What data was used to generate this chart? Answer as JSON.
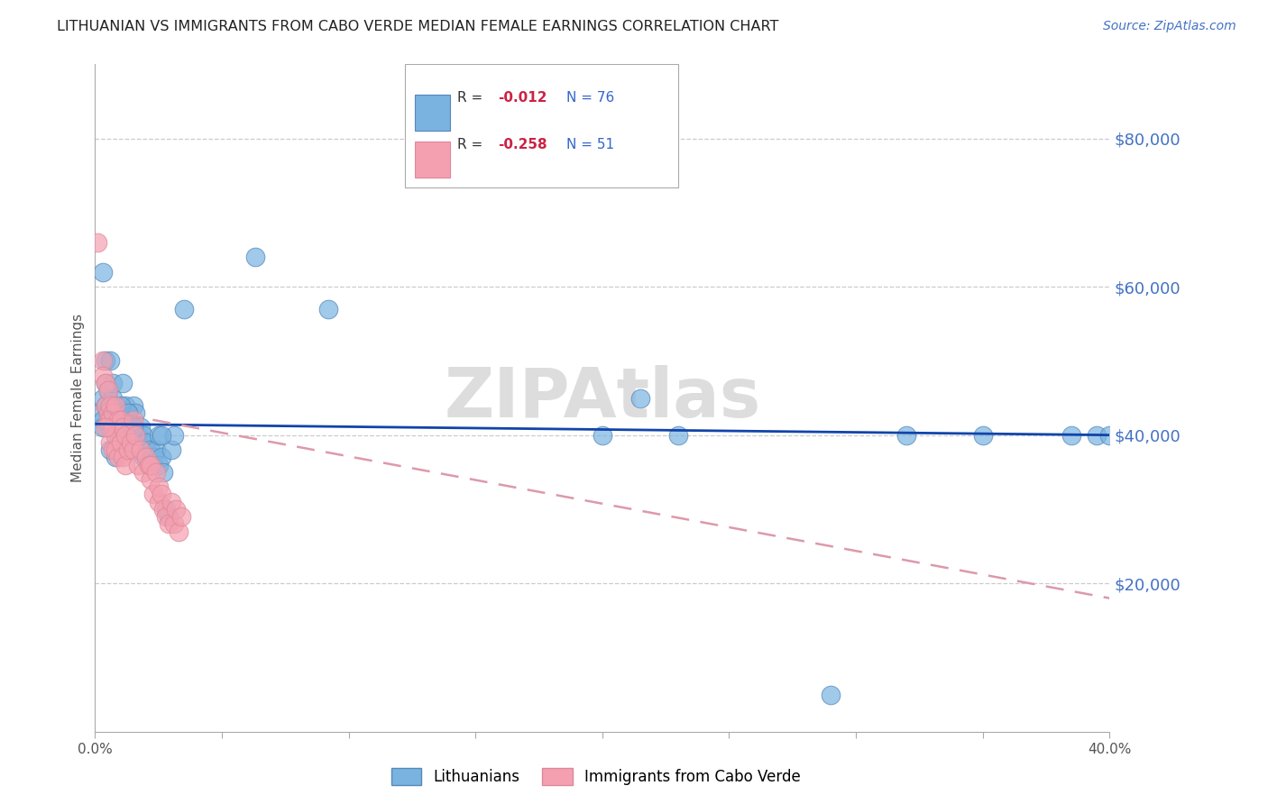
{
  "title": "LITHUANIAN VS IMMIGRANTS FROM CABO VERDE MEDIAN FEMALE EARNINGS CORRELATION CHART",
  "source": "Source: ZipAtlas.com",
  "ylabel": "Median Female Earnings",
  "legend_r_n": [
    {
      "R": "-0.012",
      "N": "76",
      "color_patch": "#7ab3e0",
      "R_color": "#cc2244",
      "N_color": "#3366cc"
    },
    {
      "R": "-0.258",
      "N": "51",
      "color_patch": "#f4a0b0",
      "R_color": "#cc2244",
      "N_color": "#3366cc"
    }
  ],
  "blue_scatter": [
    [
      0.002,
      43000
    ],
    [
      0.003,
      45000
    ],
    [
      0.003,
      42000
    ],
    [
      0.004,
      44000
    ],
    [
      0.004,
      50000
    ],
    [
      0.004,
      47000
    ],
    [
      0.005,
      43000
    ],
    [
      0.005,
      41000
    ],
    [
      0.005,
      46000
    ],
    [
      0.006,
      50000
    ],
    [
      0.006,
      42000
    ],
    [
      0.006,
      38000
    ],
    [
      0.007,
      44000
    ],
    [
      0.007,
      45000
    ],
    [
      0.007,
      47000
    ],
    [
      0.008,
      44000
    ],
    [
      0.008,
      41000
    ],
    [
      0.008,
      37000
    ],
    [
      0.009,
      43000
    ],
    [
      0.009,
      40000
    ],
    [
      0.009,
      43000
    ],
    [
      0.01,
      43000
    ],
    [
      0.01,
      39000
    ],
    [
      0.011,
      47000
    ],
    [
      0.011,
      43000
    ],
    [
      0.011,
      41000
    ],
    [
      0.012,
      44000
    ],
    [
      0.012,
      40000
    ],
    [
      0.012,
      42000
    ],
    [
      0.013,
      39000
    ],
    [
      0.013,
      43000
    ],
    [
      0.014,
      38000
    ],
    [
      0.014,
      41000
    ],
    [
      0.015,
      44000
    ],
    [
      0.015,
      39000
    ],
    [
      0.016,
      43000
    ],
    [
      0.016,
      38000
    ],
    [
      0.017,
      40000
    ],
    [
      0.018,
      41000
    ],
    [
      0.018,
      38000
    ],
    [
      0.019,
      37000
    ],
    [
      0.019,
      40000
    ],
    [
      0.02,
      39000
    ],
    [
      0.02,
      37000
    ],
    [
      0.021,
      36000
    ],
    [
      0.022,
      38000
    ],
    [
      0.022,
      36000
    ],
    [
      0.023,
      37000
    ],
    [
      0.024,
      38000
    ],
    [
      0.025,
      40000
    ],
    [
      0.025,
      36000
    ],
    [
      0.026,
      37000
    ],
    [
      0.027,
      35000
    ],
    [
      0.028,
      30000
    ],
    [
      0.029,
      29000
    ],
    [
      0.03,
      38000
    ],
    [
      0.031,
      40000
    ],
    [
      0.035,
      57000
    ],
    [
      0.063,
      64000
    ],
    [
      0.003,
      62000
    ],
    [
      0.092,
      57000
    ],
    [
      0.2,
      40000
    ],
    [
      0.215,
      45000
    ],
    [
      0.23,
      40000
    ],
    [
      0.29,
      5000
    ],
    [
      0.32,
      40000
    ],
    [
      0.35,
      40000
    ],
    [
      0.385,
      40000
    ],
    [
      0.395,
      40000
    ],
    [
      0.4,
      40000
    ],
    [
      0.003,
      41000
    ],
    [
      0.007,
      42000
    ],
    [
      0.01,
      44000
    ],
    [
      0.013,
      43000
    ],
    [
      0.015,
      41000
    ],
    [
      0.026,
      40000
    ]
  ],
  "pink_scatter": [
    [
      0.001,
      66000
    ],
    [
      0.003,
      50000
    ],
    [
      0.003,
      48000
    ],
    [
      0.004,
      47000
    ],
    [
      0.004,
      44000
    ],
    [
      0.005,
      43000
    ],
    [
      0.005,
      46000
    ],
    [
      0.005,
      42000
    ],
    [
      0.006,
      42000
    ],
    [
      0.006,
      39000
    ],
    [
      0.006,
      44000
    ],
    [
      0.007,
      43000
    ],
    [
      0.007,
      41000
    ],
    [
      0.007,
      38000
    ],
    [
      0.008,
      44000
    ],
    [
      0.008,
      40000
    ],
    [
      0.008,
      38000
    ],
    [
      0.009,
      42000
    ],
    [
      0.009,
      37000
    ],
    [
      0.01,
      42000
    ],
    [
      0.01,
      39000
    ],
    [
      0.011,
      41000
    ],
    [
      0.011,
      37000
    ],
    [
      0.012,
      40000
    ],
    [
      0.012,
      36000
    ],
    [
      0.013,
      38000
    ],
    [
      0.014,
      39000
    ],
    [
      0.015,
      42000
    ],
    [
      0.015,
      38000
    ],
    [
      0.016,
      40000
    ],
    [
      0.017,
      36000
    ],
    [
      0.018,
      38000
    ],
    [
      0.019,
      35000
    ],
    [
      0.02,
      37000
    ],
    [
      0.021,
      36000
    ],
    [
      0.022,
      34000
    ],
    [
      0.022,
      36000
    ],
    [
      0.023,
      32000
    ],
    [
      0.024,
      35000
    ],
    [
      0.025,
      31000
    ],
    [
      0.025,
      33000
    ],
    [
      0.026,
      32000
    ],
    [
      0.027,
      30000
    ],
    [
      0.028,
      29000
    ],
    [
      0.029,
      28000
    ],
    [
      0.03,
      31000
    ],
    [
      0.031,
      28000
    ],
    [
      0.032,
      30000
    ],
    [
      0.033,
      27000
    ],
    [
      0.034,
      29000
    ],
    [
      0.004,
      41000
    ]
  ],
  "xlim": [
    0.0,
    0.4
  ],
  "ylim": [
    0,
    90000
  ],
  "yticks": [
    20000,
    40000,
    60000,
    80000
  ],
  "xtick_positions": [
    0.0,
    0.05,
    0.1,
    0.15,
    0.2,
    0.25,
    0.3,
    0.35,
    0.4
  ],
  "xtick_labels": [
    "0.0%",
    "",
    "",
    "",
    "",
    "",
    "",
    "",
    "40.0%"
  ],
  "blue_line_y0": 41500,
  "blue_line_y1": 40000,
  "pink_line_y0": 43500,
  "pink_line_y1": 18000,
  "scatter_blue_color": "#7ab3e0",
  "scatter_blue_edge": "#5588bb",
  "scatter_pink_color": "#f4a0b0",
  "scatter_pink_edge": "#dd8899",
  "trend_blue_color": "#1144aa",
  "trend_pink_color": "#dd99aa",
  "grid_color": "#cccccc",
  "background_color": "#ffffff",
  "text_color": "#555555",
  "right_label_color": "#4472c4",
  "watermark_text": "ZIPAtlas",
  "watermark_color": "#dddddd"
}
